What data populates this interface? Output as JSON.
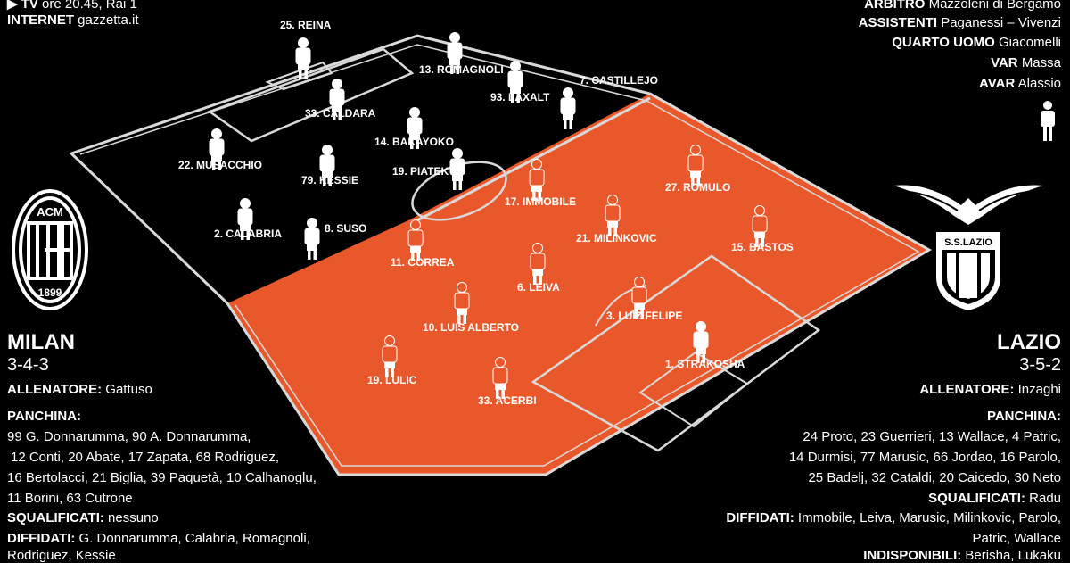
{
  "broadcast": {
    "tv_label": "▶ TV",
    "tv_value": "ore 20.45, Rai 1",
    "internet_label": "INTERNET",
    "internet_value": "gazzetta.it"
  },
  "officials": {
    "arbitro_label": "ARBITRO",
    "arbitro_value": "Mazzoleni di Bergamo",
    "assistenti_label": "ASSISTENTI",
    "assistenti_value": "Paganessi – Vivenzi",
    "quarto_label": "QUARTO UOMO",
    "quarto_value": "Giacomelli",
    "var_label": "VAR",
    "var_value": "Massa",
    "avar_label": "AVAR",
    "avar_value": "Alassio"
  },
  "milan": {
    "crest_top": "ACM",
    "crest_year": "1899",
    "name": "MILAN",
    "module": "3-4-3",
    "coach_label": "ALLENATORE:",
    "coach": "Gattuso",
    "bench_label": "PANCHINA:",
    "bench_lines": [
      "99 G. Donnarumma, 90 A. Donnarumma,",
      "12 Conti, 20 Abate, 17 Zapata, 68 Rodriguez,",
      "16 Bertolacci, 21 Biglia, 39 Paquetà, 10 Calhanoglu,",
      "11 Borini, 63 Cutrone"
    ],
    "suspended_label": "SQUALIFICATI:",
    "suspended": "nessuno",
    "warned_label": "DIFFIDATI:",
    "warned_lines": [
      "G. Donnarumma, Calabria, Romagnoli,",
      "Rodriguez, Kessie"
    ],
    "players": [
      "25. REINA",
      "13. ROMAGNOLI",
      "93. LAXALT",
      "7. CASTILLEJO",
      "33. CALDARA",
      "14. BAKAYOKO",
      "22. MUSACCHIO",
      "79. KESSIE",
      "19. PIATEK",
      "2. CALABRIA",
      "8. SUSO"
    ]
  },
  "lazio": {
    "crest_text": "S.S.LAZIO",
    "name": "LAZIO",
    "module": "3-5-2",
    "coach_label": "ALLENATORE:",
    "coach": "Inzaghi",
    "bench_label": "PANCHINA:",
    "bench_lines": [
      "24 Proto, 23 Guerrieri, 13 Wallace, 4 Patric,",
      "14 Durmisi, 77 Marusic, 66 Jordao, 16 Parolo,",
      "25 Badelj, 32 Cataldi, 20 Caicedo, 30 Neto"
    ],
    "suspended_label": "SQUALIFICATI:",
    "suspended": "Radu",
    "warned_label": "DIFFIDATI:",
    "warned_lines": [
      "Immobile, Leiva, Marusic, Milinkovic, Parolo,",
      "Patric, Wallace"
    ],
    "unavailable_label": "INDISPONIBILI:",
    "unavailable": "Berisha, Lukaku",
    "players": [
      "17. IMMOBILE",
      "27. ROMULO",
      "11. CORREA",
      "21. MILINKOVIC",
      "15. BASTOS",
      "6. LEIVA",
      "10. LUIS ALBERTO",
      "3. LUIZ FELIPE",
      "19. LULIC",
      "33. ACERBI",
      "1. STRAKOSHA"
    ]
  },
  "colors": {
    "lazio_half": "#e8582a",
    "milan_half": "#000000",
    "lines": "#d9d9d9",
    "lazio_player": "#e8582a"
  }
}
